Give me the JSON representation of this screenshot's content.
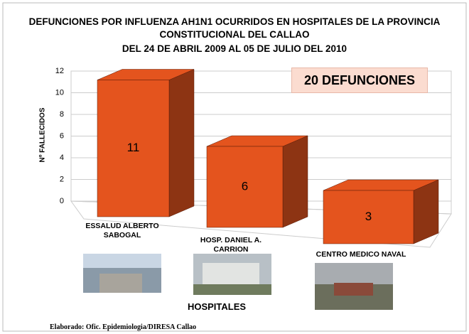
{
  "chart_data": {
    "type": "bar3d",
    "title": "DEFUNCIONES  POR INFLUENZA AH1N1 OCURRIDOS EN HOSPITALES DE LA PROVINCIA CONSTITUCIONAL  DEL CALLAO",
    "subtitle": "DEL 24 DE ABRIL 2009 AL 05 DE JULIO DEL 2010",
    "categories": [
      "ESSALUD ALBERTO SABOGAL",
      "HOSP. DANIEL A. CARRION",
      "CENTRO MEDICO NAVAL"
    ],
    "values": [
      11,
      6,
      3
    ],
    "color": "#e4541e",
    "ylim": [
      0,
      12
    ],
    "yticks": [
      0,
      2,
      4,
      6,
      8,
      10,
      12
    ],
    "grid": true,
    "y_label": "Nº  FALLECIDOS",
    "x_label": "HOSPITALES",
    "annotation": "20 DEFUNCIONES",
    "footer": "Elaborado: Ofic. Epidemiologia/DIRESA Callao"
  }
}
